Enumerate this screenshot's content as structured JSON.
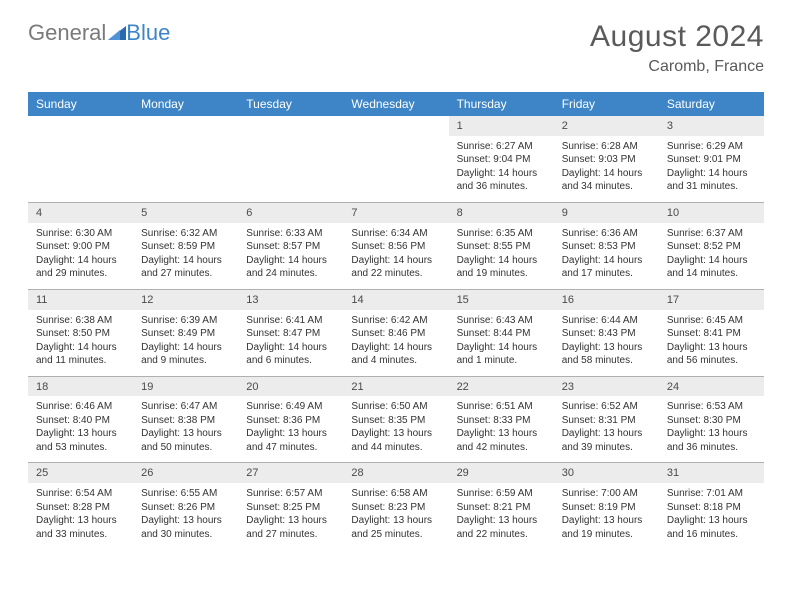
{
  "logo": {
    "part1": "General",
    "part2": "Blue"
  },
  "title": {
    "month": "August 2024",
    "location": "Caromb, France"
  },
  "colors": {
    "header_bg": "#3d85c6",
    "header_text": "#ffffff",
    "daynum_bg": "#ececec",
    "text": "#333333",
    "title_text": "#5a5a5a",
    "logo_gray": "#7a7a7a",
    "logo_blue": "#3d85c6",
    "rule": "#b0b0b0"
  },
  "daysOfWeek": [
    "Sunday",
    "Monday",
    "Tuesday",
    "Wednesday",
    "Thursday",
    "Friday",
    "Saturday"
  ],
  "weeks": [
    [
      null,
      null,
      null,
      null,
      {
        "n": "1",
        "sr": "Sunrise: 6:27 AM",
        "ss": "Sunset: 9:04 PM",
        "dl": "Daylight: 14 hours and 36 minutes."
      },
      {
        "n": "2",
        "sr": "Sunrise: 6:28 AM",
        "ss": "Sunset: 9:03 PM",
        "dl": "Daylight: 14 hours and 34 minutes."
      },
      {
        "n": "3",
        "sr": "Sunrise: 6:29 AM",
        "ss": "Sunset: 9:01 PM",
        "dl": "Daylight: 14 hours and 31 minutes."
      }
    ],
    [
      {
        "n": "4",
        "sr": "Sunrise: 6:30 AM",
        "ss": "Sunset: 9:00 PM",
        "dl": "Daylight: 14 hours and 29 minutes."
      },
      {
        "n": "5",
        "sr": "Sunrise: 6:32 AM",
        "ss": "Sunset: 8:59 PM",
        "dl": "Daylight: 14 hours and 27 minutes."
      },
      {
        "n": "6",
        "sr": "Sunrise: 6:33 AM",
        "ss": "Sunset: 8:57 PM",
        "dl": "Daylight: 14 hours and 24 minutes."
      },
      {
        "n": "7",
        "sr": "Sunrise: 6:34 AM",
        "ss": "Sunset: 8:56 PM",
        "dl": "Daylight: 14 hours and 22 minutes."
      },
      {
        "n": "8",
        "sr": "Sunrise: 6:35 AM",
        "ss": "Sunset: 8:55 PM",
        "dl": "Daylight: 14 hours and 19 minutes."
      },
      {
        "n": "9",
        "sr": "Sunrise: 6:36 AM",
        "ss": "Sunset: 8:53 PM",
        "dl": "Daylight: 14 hours and 17 minutes."
      },
      {
        "n": "10",
        "sr": "Sunrise: 6:37 AM",
        "ss": "Sunset: 8:52 PM",
        "dl": "Daylight: 14 hours and 14 minutes."
      }
    ],
    [
      {
        "n": "11",
        "sr": "Sunrise: 6:38 AM",
        "ss": "Sunset: 8:50 PM",
        "dl": "Daylight: 14 hours and 11 minutes."
      },
      {
        "n": "12",
        "sr": "Sunrise: 6:39 AM",
        "ss": "Sunset: 8:49 PM",
        "dl": "Daylight: 14 hours and 9 minutes."
      },
      {
        "n": "13",
        "sr": "Sunrise: 6:41 AM",
        "ss": "Sunset: 8:47 PM",
        "dl": "Daylight: 14 hours and 6 minutes."
      },
      {
        "n": "14",
        "sr": "Sunrise: 6:42 AM",
        "ss": "Sunset: 8:46 PM",
        "dl": "Daylight: 14 hours and 4 minutes."
      },
      {
        "n": "15",
        "sr": "Sunrise: 6:43 AM",
        "ss": "Sunset: 8:44 PM",
        "dl": "Daylight: 14 hours and 1 minute."
      },
      {
        "n": "16",
        "sr": "Sunrise: 6:44 AM",
        "ss": "Sunset: 8:43 PM",
        "dl": "Daylight: 13 hours and 58 minutes."
      },
      {
        "n": "17",
        "sr": "Sunrise: 6:45 AM",
        "ss": "Sunset: 8:41 PM",
        "dl": "Daylight: 13 hours and 56 minutes."
      }
    ],
    [
      {
        "n": "18",
        "sr": "Sunrise: 6:46 AM",
        "ss": "Sunset: 8:40 PM",
        "dl": "Daylight: 13 hours and 53 minutes."
      },
      {
        "n": "19",
        "sr": "Sunrise: 6:47 AM",
        "ss": "Sunset: 8:38 PM",
        "dl": "Daylight: 13 hours and 50 minutes."
      },
      {
        "n": "20",
        "sr": "Sunrise: 6:49 AM",
        "ss": "Sunset: 8:36 PM",
        "dl": "Daylight: 13 hours and 47 minutes."
      },
      {
        "n": "21",
        "sr": "Sunrise: 6:50 AM",
        "ss": "Sunset: 8:35 PM",
        "dl": "Daylight: 13 hours and 44 minutes."
      },
      {
        "n": "22",
        "sr": "Sunrise: 6:51 AM",
        "ss": "Sunset: 8:33 PM",
        "dl": "Daylight: 13 hours and 42 minutes."
      },
      {
        "n": "23",
        "sr": "Sunrise: 6:52 AM",
        "ss": "Sunset: 8:31 PM",
        "dl": "Daylight: 13 hours and 39 minutes."
      },
      {
        "n": "24",
        "sr": "Sunrise: 6:53 AM",
        "ss": "Sunset: 8:30 PM",
        "dl": "Daylight: 13 hours and 36 minutes."
      }
    ],
    [
      {
        "n": "25",
        "sr": "Sunrise: 6:54 AM",
        "ss": "Sunset: 8:28 PM",
        "dl": "Daylight: 13 hours and 33 minutes."
      },
      {
        "n": "26",
        "sr": "Sunrise: 6:55 AM",
        "ss": "Sunset: 8:26 PM",
        "dl": "Daylight: 13 hours and 30 minutes."
      },
      {
        "n": "27",
        "sr": "Sunrise: 6:57 AM",
        "ss": "Sunset: 8:25 PM",
        "dl": "Daylight: 13 hours and 27 minutes."
      },
      {
        "n": "28",
        "sr": "Sunrise: 6:58 AM",
        "ss": "Sunset: 8:23 PM",
        "dl": "Daylight: 13 hours and 25 minutes."
      },
      {
        "n": "29",
        "sr": "Sunrise: 6:59 AM",
        "ss": "Sunset: 8:21 PM",
        "dl": "Daylight: 13 hours and 22 minutes."
      },
      {
        "n": "30",
        "sr": "Sunrise: 7:00 AM",
        "ss": "Sunset: 8:19 PM",
        "dl": "Daylight: 13 hours and 19 minutes."
      },
      {
        "n": "31",
        "sr": "Sunrise: 7:01 AM",
        "ss": "Sunset: 8:18 PM",
        "dl": "Daylight: 13 hours and 16 minutes."
      }
    ]
  ]
}
